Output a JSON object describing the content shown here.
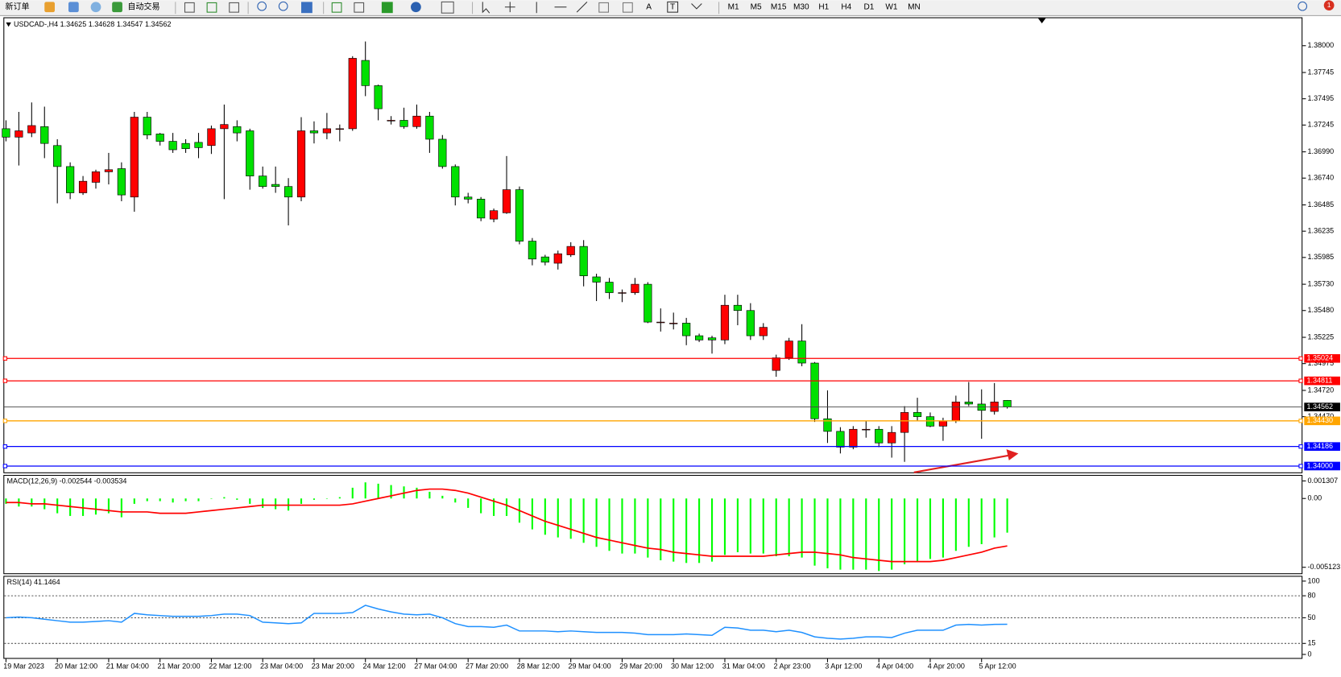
{
  "toolbar": {
    "new_order": "新订单",
    "auto_trading": "自动交易",
    "tools": [
      "A",
      "T"
    ],
    "timeframes": [
      "M1",
      "M5",
      "M15",
      "M30",
      "H1",
      "H4",
      "D1",
      "W1",
      "MN"
    ],
    "badge": "1"
  },
  "chart_data": [
    {
      "type": "candlestick",
      "title": "USDCAD-,H4",
      "categories": [
        "19 Mar 2023",
        null,
        null,
        null,
        "20 Mar 12:00",
        null,
        null,
        null,
        "21 Mar 04:00",
        null,
        null,
        null,
        "21 Mar 20:00",
        null,
        null,
        null,
        "22 Mar 12:00",
        null,
        null,
        null,
        "23 Mar 04:00",
        null,
        null,
        null,
        "23 Mar 20:00",
        null,
        null,
        null,
        "24 Mar 12:00",
        null,
        null,
        null,
        "27 Mar 04:00",
        null,
        null,
        null,
        "27 Mar 20:00",
        null,
        null,
        null,
        "28 Mar 12:00",
        null,
        null,
        null,
        "29 Mar 04:00",
        null,
        null,
        null,
        "29 Mar 20:00",
        null,
        null,
        null,
        "30 Mar 12:00",
        null,
        null,
        null,
        "31 Mar 04:00",
        null,
        null,
        null,
        "2 Apr 23:00",
        null,
        null,
        null,
        "3 Apr 12:00",
        null,
        null,
        null,
        "4 Apr 04:00",
        null,
        null,
        null,
        "4 Apr 20:00",
        null,
        null,
        null,
        "5 Apr 12:00",
        null,
        null
      ],
      "open": [
        1.3721,
        1.3713,
        1.3717,
        1.3723,
        1.3705,
        1.3685,
        1.366,
        1.367,
        1.368,
        1.3683,
        1.3656,
        1.3732,
        1.3716,
        1.3709,
        1.3707,
        1.3708,
        1.3705,
        1.3721,
        1.3723,
        1.3719,
        1.3676,
        1.3668,
        1.3666,
        1.3656,
        1.3719,
        1.3717,
        1.3721,
        1.3721,
        1.3786,
        1.3762,
        1.3729,
        1.3729,
        1.3723,
        1.3733,
        1.3711,
        1.3685,
        1.3656,
        1.3654,
        1.3635,
        1.3641,
        1.3663,
        1.3614,
        1.3599,
        1.3593,
        1.3601,
        1.3609,
        1.358,
        1.3575,
        1.3565,
        1.3565,
        1.3573,
        1.3537,
        1.3536,
        1.3536,
        1.3524,
        1.3522,
        1.352,
        1.3553,
        1.3548,
        1.3524,
        1.3491,
        1.3503,
        1.3519,
        1.3498,
        1.3445,
        1.3433,
        1.3418,
        1.3435,
        1.3435,
        1.3422,
        1.3432,
        1.3451,
        1.3447,
        1.3438,
        1.3443,
        1.3461,
        1.3459,
        1.3452,
        1.34625
      ],
      "high": [
        1.3729,
        1.3737,
        1.3746,
        1.3742,
        1.3711,
        1.3689,
        1.3676,
        1.3682,
        1.3698,
        1.3689,
        1.3737,
        1.3737,
        1.3717,
        1.3717,
        1.3711,
        1.3717,
        1.3724,
        1.3744,
        1.3729,
        1.3721,
        1.3685,
        1.3685,
        1.3674,
        1.3732,
        1.3728,
        1.3736,
        1.3725,
        1.379,
        1.3804,
        1.3763,
        1.3733,
        1.3741,
        1.3744,
        1.3737,
        1.3715,
        1.3687,
        1.366,
        1.3656,
        1.3645,
        1.3695,
        1.3666,
        1.3617,
        1.3601,
        1.3605,
        1.3613,
        1.3615,
        1.3583,
        1.3579,
        1.3568,
        1.3579,
        1.3575,
        1.355,
        1.3546,
        1.3541,
        1.3526,
        1.3524,
        1.3563,
        1.3563,
        1.3555,
        1.3536,
        1.3506,
        1.3522,
        1.3535,
        1.3499,
        1.3472,
        1.3437,
        1.3438,
        1.3443,
        1.3438,
        1.3438,
        1.3457,
        1.3465,
        1.3451,
        1.3446,
        1.3467,
        1.348,
        1.3473,
        1.3479,
        1.34628
      ],
      "low": [
        1.3709,
        1.3686,
        1.3713,
        1.3693,
        1.365,
        1.3654,
        1.3658,
        1.3664,
        1.3668,
        1.3652,
        1.3642,
        1.3711,
        1.3705,
        1.3698,
        1.3698,
        1.3693,
        1.3697,
        1.3654,
        1.3709,
        1.3663,
        1.3664,
        1.366,
        1.3629,
        1.3652,
        1.3707,
        1.3711,
        1.3709,
        1.3719,
        1.3752,
        1.3729,
        1.3725,
        1.3721,
        1.3721,
        1.3698,
        1.3683,
        1.3648,
        1.365,
        1.3633,
        1.3632,
        1.364,
        1.3611,
        1.3591,
        1.3591,
        1.3587,
        1.3599,
        1.3571,
        1.3557,
        1.3559,
        1.3556,
        1.3563,
        1.3536,
        1.3528,
        1.353,
        1.3515,
        1.3518,
        1.3507,
        1.3516,
        1.3534,
        1.352,
        1.352,
        1.3485,
        1.3501,
        1.3495,
        1.3442,
        1.3422,
        1.3412,
        1.3416,
        1.3427,
        1.3418,
        1.3408,
        1.3404,
        1.3443,
        1.3437,
        1.3424,
        1.3441,
        1.3457,
        1.3426,
        1.3449,
        1.34547
      ],
      "close": [
        1.3713,
        1.3719,
        1.3724,
        1.3707,
        1.3685,
        1.366,
        1.3671,
        1.368,
        1.3682,
        1.3658,
        1.3732,
        1.3715,
        1.3709,
        1.3701,
        1.3702,
        1.3703,
        1.3721,
        1.3725,
        1.3717,
        1.3676,
        1.3666,
        1.3666,
        1.3656,
        1.3719,
        1.3717,
        1.3721,
        1.3721,
        1.3788,
        1.3762,
        1.374,
        1.3729,
        1.3723,
        1.3733,
        1.3711,
        1.3685,
        1.3656,
        1.3654,
        1.3636,
        1.3643,
        1.3663,
        1.3614,
        1.3597,
        1.3594,
        1.3602,
        1.3609,
        1.3581,
        1.3575,
        1.3565,
        1.3565,
        1.3573,
        1.3537,
        1.3537,
        1.3536,
        1.3524,
        1.352,
        1.352,
        1.3553,
        1.3548,
        1.3524,
        1.3532,
        1.3503,
        1.3519,
        1.3498,
        1.3445,
        1.3433,
        1.3418,
        1.3435,
        1.3435,
        1.3422,
        1.3432,
        1.3451,
        1.3447,
        1.3438,
        1.3443,
        1.3461,
        1.3459,
        1.3453,
        1.3461,
        1.34562
      ],
      "up_color": "#ff0000",
      "down_color": "#00e000",
      "ylim": [
        1.3394,
        1.3827
      ],
      "yticks": [
        {
          "value": 1.38,
          "label": "1.38000"
        },
        1.37745,
        1.37495,
        1.37245,
        {
          "value": 1.3699,
          "label": "1.36990"
        },
        {
          "value": 1.3674,
          "label": "1.36740"
        },
        1.36485,
        1.36235,
        1.35985,
        {
          "value": 1.3573,
          "label": "1.35730"
        },
        {
          "value": 1.3548,
          "label": "1.35480"
        },
        1.35225,
        1.34975,
        {
          "value": 1.3472,
          "label": "1.34720"
        },
        {
          "value": 1.3447,
          "label": "1.34470"
        }
      ],
      "levels": [
        {
          "value": 1.35024,
          "color": "#ff0000"
        },
        {
          "value": 1.34811,
          "color": "#ff0000"
        },
        {
          "value": 1.3443,
          "label": "1.34430",
          "color": "#ffa500"
        },
        {
          "value": 1.34186,
          "color": "#0000ff"
        },
        {
          "value": 1.34,
          "label": "1.34000",
          "color": "#0000ff"
        }
      ]
    },
    {
      "type": "macd",
      "title": "MACD(12,26,9)",
      "series": [
        {
          "color": "#00ff00",
          "values": [
            -0.0004,
            -0.0006,
            -0.0006,
            -0.0008,
            -0.0011,
            -0.0013,
            -0.0013,
            -0.0012,
            -0.0011,
            -0.0014,
            -0.0004,
            -0.0002,
            -0.0002,
            -0.0003,
            -0.0002,
            -0.0002,
            0.0,
            0.0001,
            -0.0001,
            -0.0004,
            -0.0007,
            -0.0008,
            -0.0009,
            -0.0004,
            -0.0001,
            0.0,
            0.0001,
            0.0008,
            0.0012,
            0.0011,
            0.001,
            0.0009,
            0.0008,
            0.0005,
            0.0002,
            -0.0003,
            -0.0007,
            -0.0011,
            -0.0013,
            -0.0013,
            -0.0018,
            -0.0023,
            -0.0027,
            -0.0029,
            -0.003,
            -0.0033,
            -0.0036,
            -0.0039,
            -0.0041,
            -0.0041,
            -0.0044,
            -0.0046,
            -0.0047,
            -0.0048,
            -0.0048,
            -0.0047,
            -0.0042,
            -0.004,
            -0.0041,
            -0.0041,
            -0.0043,
            -0.0043,
            -0.0044,
            -0.005,
            -0.0052,
            -0.0053,
            -0.0053,
            -0.0053,
            -0.0054,
            -0.0053,
            -0.0049,
            -0.0047,
            -0.0045,
            -0.0044,
            -0.0039,
            -0.0036,
            -0.0034,
            -0.0029,
            -0.002544
          ]
        },
        {
          "color": "#ff0000",
          "values": [
            -0.0003,
            -0.0003,
            -0.0004,
            -0.0004,
            -0.0005,
            -0.0006,
            -0.0007,
            -0.0008,
            -0.0009,
            -0.001,
            -0.001,
            -0.001,
            -0.0011,
            -0.0011,
            -0.0011,
            -0.001,
            -0.0009,
            -0.0008,
            -0.0007,
            -0.0006,
            -0.0005,
            -0.0005,
            -0.0005,
            -0.0005,
            -0.0005,
            -0.0005,
            -0.0005,
            -0.0004,
            -0.0002,
            0.0,
            0.0002,
            0.0004,
            0.0006,
            0.0007,
            0.0007,
            0.0006,
            0.0004,
            0.0001,
            -0.0002,
            -0.0005,
            -0.0009,
            -0.0013,
            -0.0017,
            -0.002,
            -0.0023,
            -0.0026,
            -0.0029,
            -0.0031,
            -0.0033,
            -0.0035,
            -0.0037,
            -0.0038,
            -0.004,
            -0.0041,
            -0.0042,
            -0.0043,
            -0.0043,
            -0.0043,
            -0.0043,
            -0.0043,
            -0.0042,
            -0.0041,
            -0.004,
            -0.004,
            -0.0041,
            -0.0042,
            -0.0044,
            -0.0045,
            -0.0046,
            -0.0047,
            -0.0047,
            -0.0047,
            -0.0047,
            -0.0046,
            -0.0044,
            -0.0042,
            -0.004,
            -0.0037,
            -0.003534
          ]
        }
      ],
      "ylim": [
        -0.00557,
        0.00169
      ],
      "yticks": [
        0.001307,
        {
          "value": 0,
          "label": "0.00"
        },
        -0.005123
      ]
    },
    {
      "type": "line",
      "title": "RSI(14)",
      "color": "#1e90ff",
      "values": [
        50,
        51,
        50,
        48,
        46,
        44,
        44,
        45,
        46,
        44,
        56,
        54,
        53,
        52,
        52,
        52,
        53,
        55,
        55,
        53,
        44,
        43,
        42,
        43,
        56,
        56,
        56,
        57,
        67,
        62,
        58,
        55,
        54,
        55,
        50,
        42,
        38,
        38,
        37,
        40,
        32,
        32,
        32,
        31,
        32,
        31,
        30,
        30,
        30,
        29,
        27,
        27,
        27,
        28,
        27,
        26,
        37,
        36,
        33,
        33,
        31,
        33,
        30,
        24,
        22,
        21,
        22,
        24,
        24,
        23,
        29,
        33,
        33,
        33,
        40,
        41,
        40,
        41,
        41.1464
      ],
      "ylim": [
        -6,
        106
      ],
      "yticks": [
        0,
        15,
        50,
        80,
        100
      ],
      "levels": [
        80,
        50,
        15
      ]
    }
  ]
}
